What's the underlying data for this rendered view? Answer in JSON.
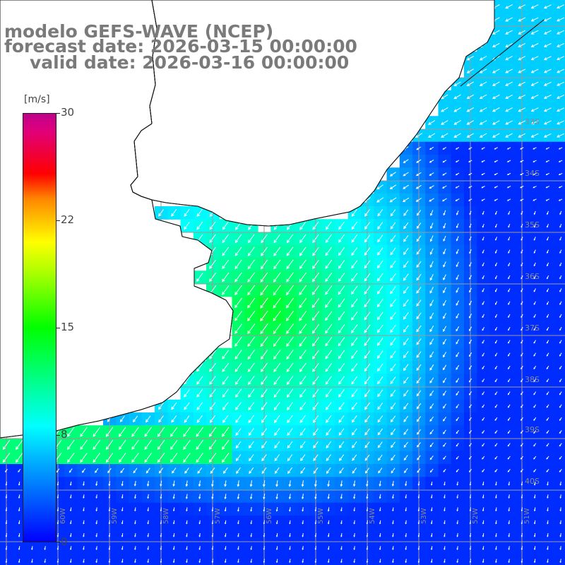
{
  "title": {
    "line1": "modelo GEFS-WAVE (NCEP)",
    "line2": "forecast date: 2026-03-15 00:00:00",
    "line3": "valid date: 2026-03-16 00:00:00"
  },
  "colorbar": {
    "unit": "[m/s]",
    "ticks": [
      "30",
      "22",
      "15",
      "8",
      "0"
    ],
    "range": [
      0,
      30
    ],
    "colors": [
      "#0000ff",
      "#00a8ff",
      "#00ffff",
      "#00ff00",
      "#a0ff00",
      "#ffff00",
      "#ff8800",
      "#ff0000",
      "#c0008c"
    ]
  },
  "latitude_labels": [
    "33S",
    "34S",
    "35S",
    "36S",
    "37S",
    "38S",
    "39S",
    "40S"
  ],
  "longitude_labels": [
    "60W",
    "59W",
    "58W",
    "57W",
    "56W",
    "55W",
    "54W",
    "53W",
    "52W",
    "51W"
  ],
  "wind_field": {
    "description_none": "",
    "dominant_direction": "toward southwest",
    "max_speed_region": "offshore coast, green 11-13 m/s",
    "calm_region": "southeast, blue 2-4 m/s"
  }
}
